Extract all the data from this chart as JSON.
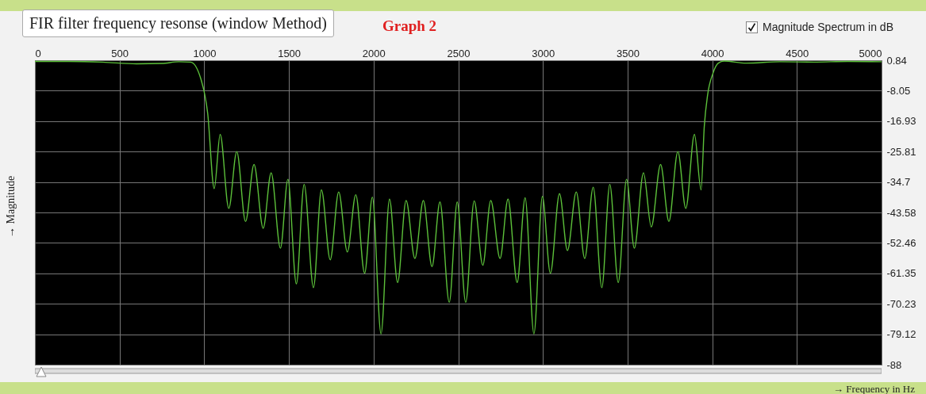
{
  "chart_data": {
    "type": "line",
    "title": "FIR filter frequency resonse (window Method)",
    "subtitle": "Graph 2",
    "xlabel": "→ Frequency in Hz",
    "ylabel": "→ Magnitude",
    "annotations": [
      "Magnitude Spectrum in dB"
    ],
    "xlim": [
      0,
      5000
    ],
    "xticks": [
      0,
      500,
      1000,
      1500,
      2000,
      2500,
      3000,
      3500,
      4000,
      4500,
      5000
    ],
    "ylim": [
      -88,
      0.84
    ],
    "yticks": [
      0.84,
      -8.05,
      -16.93,
      -25.81,
      -34.7,
      -43.58,
      -52.46,
      -61.35,
      -70.23,
      -79.12,
      -88
    ],
    "grid": true,
    "marker": "none",
    "line_style": "solid",
    "x": [
      0,
      200,
      400,
      600,
      750,
      850,
      920,
      980,
      1020,
      1059,
      1094,
      1145,
      1192,
      1244,
      1294,
      1348,
      1395,
      1450,
      1494,
      1544,
      1590,
      1645,
      1692,
      1744,
      1794,
      1845,
      1895,
      1947,
      1993,
      2044,
      2094,
      2142,
      2192,
      2244,
      2294,
      2345,
      2392,
      2447,
      2494,
      2544,
      2594,
      2645,
      2692,
      2747,
      2794,
      2848,
      2895,
      2947,
      2997,
      3044,
      3098,
      3145,
      3197,
      3247,
      3297,
      3348,
      3395,
      3445,
      3494,
      3540,
      3594,
      3640,
      3695,
      3744,
      3797,
      3844,
      3895,
      3934,
      3953,
      3973,
      4004,
      4036,
      4070,
      4200,
      4400,
      4600,
      4800,
      5000
    ],
    "series": [
      {
        "color": "#5cc03a",
        "values": [
          0.5,
          0.5,
          0.3,
          -0.2,
          -0.1,
          0.4,
          0.3,
          -4.6,
          -14.5,
          -36.6,
          -20.8,
          -42.4,
          -25.8,
          -46.2,
          -29.6,
          -48.2,
          -32.0,
          -54.0,
          -33.9,
          -64.4,
          -35.4,
          -65.5,
          -37.0,
          -57.4,
          -37.6,
          -55.1,
          -38.4,
          -61.3,
          -39.1,
          -79.0,
          -39.7,
          -64.0,
          -40.1,
          -57.0,
          -40.1,
          -59.4,
          -40.5,
          -69.8,
          -40.5,
          -69.8,
          -40.2,
          -59.0,
          -40.1,
          -57.0,
          -39.7,
          -64.0,
          -39.3,
          -79.0,
          -38.9,
          -61.3,
          -38.1,
          -54.7,
          -37.6,
          -57.0,
          -36.2,
          -65.5,
          -35.4,
          -64.0,
          -33.9,
          -54.0,
          -32.0,
          -47.8,
          -29.6,
          -46.2,
          -25.8,
          -42.4,
          -20.8,
          -37.0,
          -18.5,
          -9.2,
          -3.0,
          0.0,
          0.6,
          0.0,
          0.4,
          0.3,
          0.5,
          0.4
        ]
      }
    ]
  }
}
